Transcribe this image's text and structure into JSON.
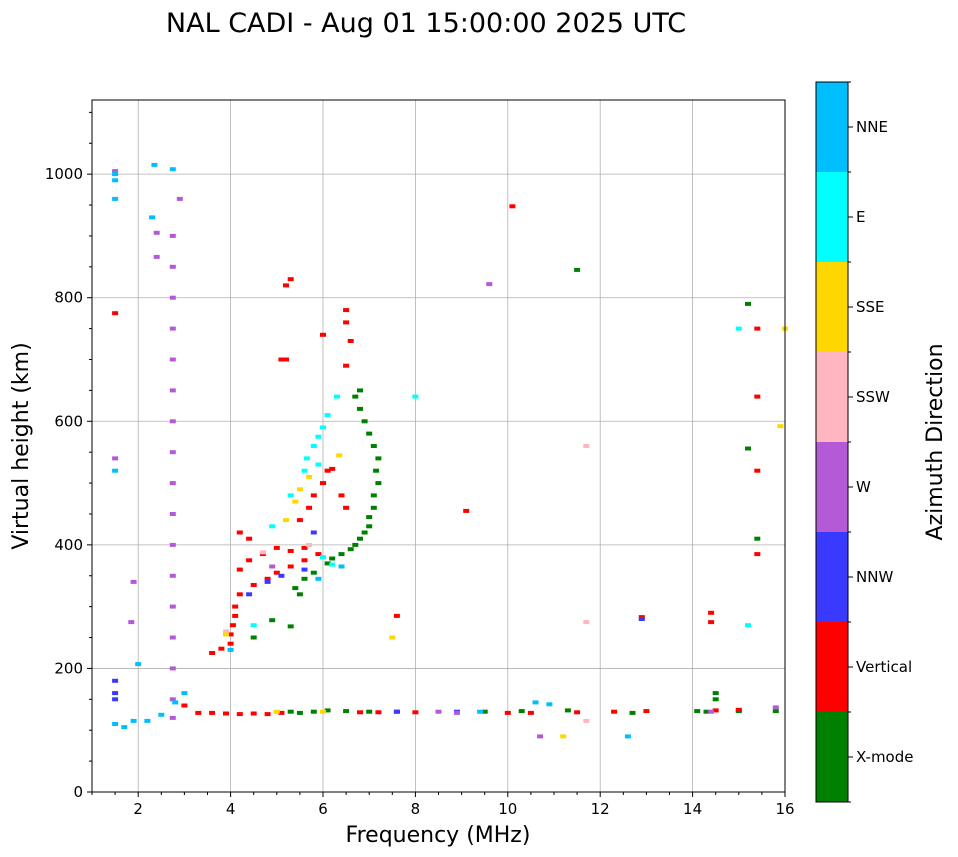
{
  "chart_data": {
    "type": "scatter",
    "title": "NAL CADI - Aug 01 15:00:00 2025 UTC",
    "xlabel": "Frequency (MHz)",
    "ylabel": "Virtual height (km)",
    "xlim": [
      1,
      16
    ],
    "ylim": [
      0,
      1120
    ],
    "x_ticks": [
      2,
      4,
      6,
      8,
      10,
      12,
      14,
      16
    ],
    "y_ticks": [
      0,
      200,
      400,
      600,
      800,
      1000
    ],
    "grid": true,
    "colorbar": {
      "label": "Azimuth Direction",
      "categories": [
        "X-mode",
        "Vertical",
        "NNW",
        "W",
        "SSW",
        "SSE",
        "E",
        "NNE"
      ],
      "colors": [
        "#008000",
        "#ff0000",
        "#3a3aff",
        "#b45ad7",
        "#ffb6c1",
        "#ffd700",
        "#00ffff",
        "#00bfff"
      ]
    },
    "series": [
      {
        "name": "X-mode",
        "points": [
          [
            5.3,
            130
          ],
          [
            5.5,
            128
          ],
          [
            5.8,
            130
          ],
          [
            6.1,
            132
          ],
          [
            6.5,
            131
          ],
          [
            7.0,
            130
          ],
          [
            9.5,
            130
          ],
          [
            10.3,
            131
          ],
          [
            11.3,
            132
          ],
          [
            12.7,
            128
          ],
          [
            14.1,
            131
          ],
          [
            14.3,
            130
          ],
          [
            15.0,
            131
          ],
          [
            15.8,
            131
          ],
          [
            14.5,
            150
          ],
          [
            14.5,
            160
          ],
          [
            5.4,
            330
          ],
          [
            5.5,
            320
          ],
          [
            5.6,
            345
          ],
          [
            5.8,
            355
          ],
          [
            6.1,
            370
          ],
          [
            6.2,
            378
          ],
          [
            6.4,
            385
          ],
          [
            6.6,
            393
          ],
          [
            6.7,
            400
          ],
          [
            6.8,
            410
          ],
          [
            6.9,
            420
          ],
          [
            7.0,
            430
          ],
          [
            7.0,
            445
          ],
          [
            7.1,
            460
          ],
          [
            7.1,
            480
          ],
          [
            7.2,
            500
          ],
          [
            7.15,
            520
          ],
          [
            7.2,
            540
          ],
          [
            7.1,
            560
          ],
          [
            7.0,
            580
          ],
          [
            6.9,
            600
          ],
          [
            6.8,
            620
          ],
          [
            6.7,
            640
          ],
          [
            6.8,
            650
          ],
          [
            15.4,
            410
          ],
          [
            15.2,
            556
          ],
          [
            15.2,
            790
          ],
          [
            11.5,
            845
          ],
          [
            4.9,
            278
          ],
          [
            5.3,
            268
          ],
          [
            4.5,
            250
          ]
        ]
      },
      {
        "name": "Vertical",
        "points": [
          [
            3.0,
            140
          ],
          [
            3.3,
            128
          ],
          [
            3.6,
            128
          ],
          [
            3.9,
            127
          ],
          [
            4.2,
            126
          ],
          [
            4.5,
            127
          ],
          [
            4.8,
            126
          ],
          [
            5.1,
            128
          ],
          [
            6.8,
            129
          ],
          [
            7.2,
            129
          ],
          [
            7.6,
            130
          ],
          [
            8.0,
            129
          ],
          [
            10.0,
            128
          ],
          [
            10.5,
            128
          ],
          [
            11.5,
            129
          ],
          [
            12.3,
            130
          ],
          [
            13.0,
            131
          ],
          [
            14.5,
            132
          ],
          [
            15.0,
            133
          ],
          [
            3.6,
            225
          ],
          [
            3.8,
            232
          ],
          [
            4.0,
            240
          ],
          [
            4.0,
            255
          ],
          [
            4.05,
            270
          ],
          [
            4.1,
            285
          ],
          [
            4.1,
            300
          ],
          [
            4.2,
            320
          ],
          [
            4.5,
            335
          ],
          [
            4.8,
            345
          ],
          [
            5.0,
            355
          ],
          [
            5.3,
            365
          ],
          [
            5.6,
            375
          ],
          [
            5.9,
            385
          ],
          [
            4.2,
            360
          ],
          [
            4.4,
            375
          ],
          [
            4.7,
            385
          ],
          [
            5.0,
            395
          ],
          [
            5.3,
            390
          ],
          [
            5.6,
            395
          ],
          [
            4.4,
            410
          ],
          [
            4.2,
            420
          ],
          [
            5.5,
            440
          ],
          [
            5.7,
            460
          ],
          [
            5.8,
            480
          ],
          [
            6.0,
            500
          ],
          [
            6.1,
            520
          ],
          [
            6.2,
            523
          ],
          [
            6.4,
            480
          ],
          [
            6.5,
            460
          ],
          [
            5.1,
            700
          ],
          [
            5.2,
            700
          ],
          [
            5.3,
            830
          ],
          [
            5.2,
            820
          ],
          [
            6.0,
            740
          ],
          [
            6.5,
            690
          ],
          [
            6.5,
            780
          ],
          [
            6.6,
            730
          ],
          [
            6.5,
            760
          ],
          [
            15.4,
            385
          ],
          [
            15.4,
            520
          ],
          [
            15.4,
            640
          ],
          [
            15.4,
            750
          ],
          [
            1.5,
            775
          ],
          [
            12.9,
            283
          ],
          [
            14.4,
            290
          ],
          [
            14.4,
            275
          ],
          [
            9.1,
            455
          ],
          [
            10.1,
            948
          ],
          [
            7.6,
            285
          ]
        ]
      },
      {
        "name": "NNW",
        "points": [
          [
            1.5,
            180
          ],
          [
            1.5,
            160
          ],
          [
            1.5,
            150
          ],
          [
            4.4,
            320
          ],
          [
            4.8,
            340
          ],
          [
            5.1,
            350
          ],
          [
            5.6,
            360
          ],
          [
            7.6,
            130
          ],
          [
            8.9,
            130
          ],
          [
            12.9,
            280
          ],
          [
            5.8,
            420
          ]
        ]
      },
      {
        "name": "W",
        "points": [
          [
            2.75,
            900
          ],
          [
            2.75,
            850
          ],
          [
            2.75,
            800
          ],
          [
            2.75,
            750
          ],
          [
            2.75,
            700
          ],
          [
            2.75,
            650
          ],
          [
            2.75,
            600
          ],
          [
            2.75,
            550
          ],
          [
            2.75,
            500
          ],
          [
            2.75,
            450
          ],
          [
            2.75,
            400
          ],
          [
            2.75,
            350
          ],
          [
            2.75,
            300
          ],
          [
            2.75,
            250
          ],
          [
            2.75,
            200
          ],
          [
            2.75,
            150
          ],
          [
            2.75,
            120
          ],
          [
            1.5,
            1005
          ],
          [
            1.5,
            540
          ],
          [
            2.4,
            905
          ],
          [
            2.4,
            866
          ],
          [
            2.9,
            960
          ],
          [
            1.9,
            340
          ],
          [
            1.85,
            275
          ],
          [
            9.6,
            822
          ],
          [
            8.5,
            130
          ],
          [
            8.9,
            128
          ],
          [
            10.7,
            90
          ],
          [
            14.4,
            130
          ],
          [
            15.8,
            137
          ],
          [
            4.9,
            365
          ]
        ]
      },
      {
        "name": "SSW",
        "points": [
          [
            11.7,
            560
          ],
          [
            11.7,
            275
          ],
          [
            11.7,
            115
          ],
          [
            5.7,
            400
          ],
          [
            4.7,
            388
          ],
          [
            3.9,
            260
          ]
        ]
      },
      {
        "name": "SSE",
        "points": [
          [
            6.35,
            545
          ],
          [
            5.4,
            470
          ],
          [
            5.5,
            490
          ],
          [
            5.7,
            510
          ],
          [
            5.2,
            440
          ],
          [
            7.5,
            250
          ],
          [
            11.2,
            90
          ],
          [
            16.0,
            750
          ],
          [
            15.9,
            592
          ],
          [
            3.9,
            255
          ],
          [
            5.0,
            130
          ],
          [
            6.0,
            130
          ]
        ]
      },
      {
        "name": "E",
        "points": [
          [
            5.8,
            560
          ],
          [
            5.9,
            575
          ],
          [
            6.0,
            590
          ],
          [
            6.1,
            610
          ],
          [
            6.3,
            640
          ],
          [
            5.6,
            520
          ],
          [
            5.3,
            480
          ],
          [
            4.9,
            430
          ],
          [
            4.5,
            270
          ],
          [
            6.2,
            368
          ],
          [
            6.0,
            380
          ],
          [
            15.0,
            750
          ],
          [
            15.2,
            270
          ],
          [
            8.0,
            640
          ],
          [
            5.9,
            530
          ],
          [
            5.65,
            540
          ]
        ]
      },
      {
        "name": "NNE",
        "points": [
          [
            1.5,
            960
          ],
          [
            1.5,
            990
          ],
          [
            1.5,
            1000
          ],
          [
            1.5,
            520
          ],
          [
            2.0,
            207
          ],
          [
            1.5,
            110
          ],
          [
            1.7,
            105
          ],
          [
            1.9,
            115
          ],
          [
            2.2,
            115
          ],
          [
            2.5,
            125
          ],
          [
            2.8,
            145
          ],
          [
            3.0,
            160
          ],
          [
            10.6,
            145
          ],
          [
            10.9,
            142
          ],
          [
            12.6,
            90
          ],
          [
            2.3,
            930
          ],
          [
            2.35,
            1015
          ],
          [
            2.75,
            1008
          ],
          [
            9.4,
            130
          ],
          [
            5.9,
            345
          ],
          [
            6.4,
            365
          ],
          [
            4.0,
            230
          ]
        ]
      }
    ]
  }
}
